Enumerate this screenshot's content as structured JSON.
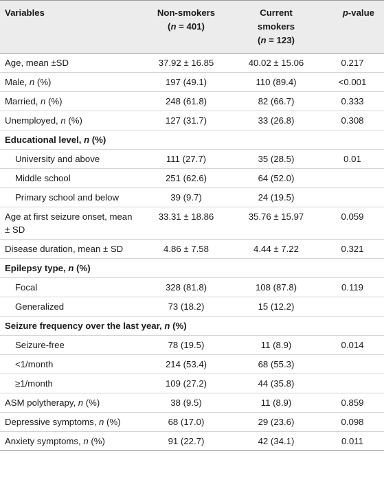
{
  "header": {
    "variables": "Variables",
    "non_smokers_line1": "Non-smokers",
    "non_smokers_n": "(n = 401)",
    "current_line1": "Current",
    "current_line2": "smokers",
    "current_n": "(n = 123)",
    "pvalue": "p-value"
  },
  "rows": [
    {
      "type": "row",
      "label": "Age, mean ±SD",
      "non": "37.92 ± 16.85",
      "cur": "40.02 ± 15.06",
      "p": "0.217"
    },
    {
      "type": "row",
      "label": "Male, n (%)",
      "non": "197 (49.1)",
      "cur": "110 (89.4)",
      "p": "<0.001"
    },
    {
      "type": "row",
      "label": "Married, n (%)",
      "non": "248 (61.8)",
      "cur": "82 (66.7)",
      "p": "0.333"
    },
    {
      "type": "row",
      "label": "Unemployed, n (%)",
      "non": "127 (31.7)",
      "cur": "33 (26.8)",
      "p": "0.308"
    },
    {
      "type": "section",
      "label": "Educational level, n (%)"
    },
    {
      "type": "sub",
      "label": "University and above",
      "non": "111 (27.7)",
      "cur": "35 (28.5)",
      "p": "0.01"
    },
    {
      "type": "sub",
      "label": "Middle school",
      "non": "251 (62.6)",
      "cur": "64 (52.0)",
      "p": ""
    },
    {
      "type": "sub",
      "label": "Primary school and below",
      "non": "39 (9.7)",
      "cur": "24 (19.5)",
      "p": ""
    },
    {
      "type": "row",
      "label": "Age at first seizure onset, mean ± SD",
      "non": "33.31 ± 18.86",
      "cur": "35.76 ± 15.97",
      "p": "0.059"
    },
    {
      "type": "row",
      "label": "Disease duration, mean ± SD",
      "non": "4.86 ± 7.58",
      "cur": "4.44 ± 7.22",
      "p": "0.321"
    },
    {
      "type": "section",
      "label": "Epilepsy type, n (%)"
    },
    {
      "type": "sub",
      "label": "Focal",
      "non": "328 (81.8)",
      "cur": "108 (87.8)",
      "p": "0.119"
    },
    {
      "type": "sub",
      "label": "Generalized",
      "non": "73 (18.2)",
      "cur": "15 (12.2)",
      "p": ""
    },
    {
      "type": "section",
      "label": "Seizure frequency over the last year, n (%)"
    },
    {
      "type": "sub",
      "label": "Seizure-free",
      "non": "78 (19.5)",
      "cur": "11 (8.9)",
      "p": "0.014"
    },
    {
      "type": "sub",
      "label": "<1/month",
      "non": "214 (53.4)",
      "cur": "68 (55.3)",
      "p": ""
    },
    {
      "type": "sub",
      "label": "≥1/month",
      "non": "109 (27.2)",
      "cur": "44 (35.8)",
      "p": ""
    },
    {
      "type": "row",
      "label": "ASM polytherapy, n (%)",
      "non": "38 (9.5)",
      "cur": "11 (8.9)",
      "p": "0.859"
    },
    {
      "type": "row",
      "label": "Depressive symptoms, n (%)",
      "non": "68 (17.0)",
      "cur": "29 (23.6)",
      "p": "0.098"
    },
    {
      "type": "row",
      "label": "Anxiety symptoms, n (%)",
      "non": "91 (22.7)",
      "cur": "42 (34.1)",
      "p": "0.011"
    }
  ]
}
